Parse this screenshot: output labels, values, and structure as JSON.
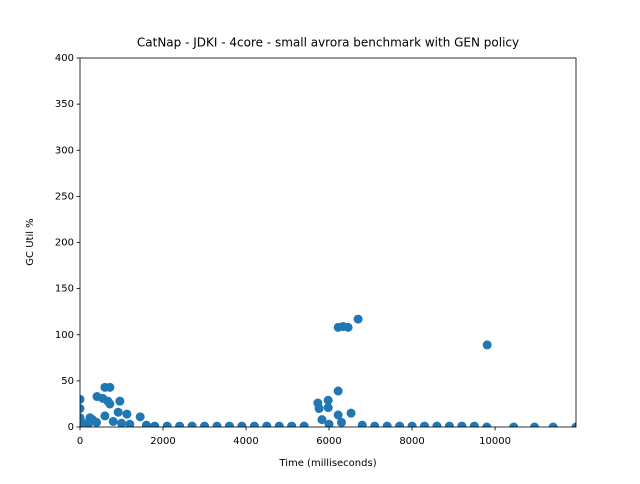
{
  "chart_data": {
    "type": "scatter",
    "title": "CatNap - JDKI - 4core -  small avrora benchmark with GEN policy",
    "x_label": "Time (milliseconds)",
    "y_label": "GC Util %",
    "color": "#1f77b4",
    "x": [
      0,
      0,
      0,
      0,
      50,
      200,
      240,
      300,
      400,
      410,
      550,
      600,
      600,
      670,
      720,
      720,
      800,
      920,
      960,
      1000,
      1130,
      1200,
      1450,
      1600,
      1800,
      2100,
      2400,
      2700,
      3000,
      3300,
      3600,
      3900,
      4200,
      4500,
      4800,
      5100,
      5400,
      5730,
      5760,
      5830,
      5980,
      5980,
      6000,
      6220,
      6220,
      6220,
      6300,
      6340,
      6460,
      6530,
      6700,
      6800,
      7100,
      7400,
      7700,
      8000,
      8300,
      8600,
      8900,
      9200,
      9500,
      9810,
      9800,
      10450,
      10950,
      11400,
      11950
    ],
    "values": [
      30,
      20,
      10,
      5,
      5,
      3,
      10,
      8,
      5,
      33,
      31,
      43,
      12,
      28,
      43,
      25,
      6,
      16,
      28,
      4,
      14,
      3,
      11,
      2,
      1,
      1,
      1,
      1,
      1,
      1,
      1,
      1,
      1,
      1,
      1,
      1,
      1,
      26,
      20,
      8,
      29,
      21,
      3,
      39,
      108,
      13,
      5,
      109,
      108,
      15,
      117,
      2,
      1,
      1,
      1,
      1,
      1,
      1,
      1,
      1,
      1,
      89,
      0,
      0,
      0,
      0,
      0
    ],
    "xlim": [
      0,
      11950
    ],
    "ylim": [
      0,
      400
    ],
    "xticks": [
      0,
      2000,
      4000,
      6000,
      8000,
      10000
    ],
    "yticks": [
      0,
      50,
      100,
      150,
      200,
      250,
      300,
      350,
      400
    ]
  }
}
